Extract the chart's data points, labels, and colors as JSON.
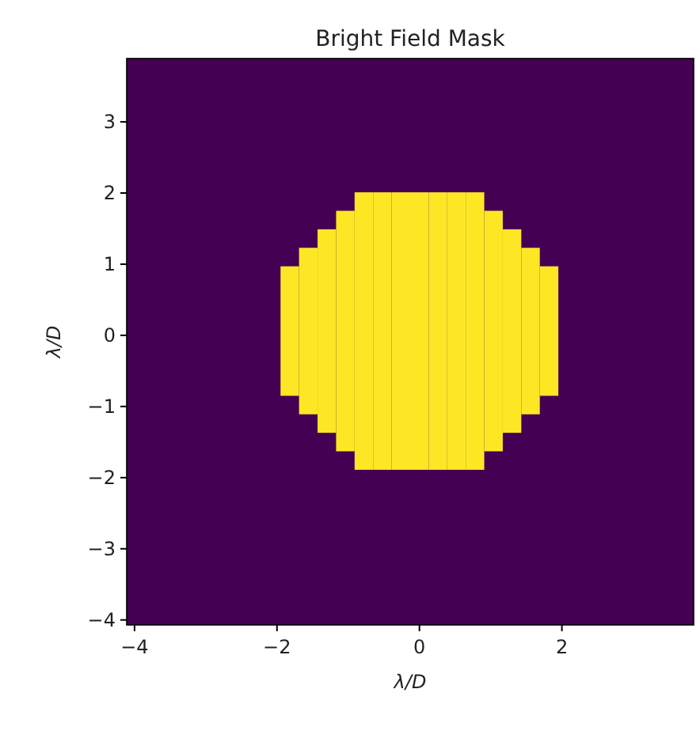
{
  "chart_data": {
    "type": "bar",
    "title": "Bright Field Mask",
    "xlabel": "λ/D",
    "ylabel": "λ/D",
    "xlim": [
      -4.11,
      3.85
    ],
    "ylim": [
      -4.07,
      3.89
    ],
    "xticks": [
      -4,
      -2,
      0,
      2
    ],
    "yticks": [
      -4,
      -3,
      -2,
      -1,
      0,
      1,
      2,
      3
    ],
    "x": [
      -1.82,
      -1.56,
      -1.3,
      -1.04,
      -0.78,
      -0.52,
      -0.26,
      0,
      0.26,
      0.52,
      0.78,
      1.04,
      1.3,
      1.56,
      1.82
    ],
    "base": [
      -0.85,
      -1.11,
      -1.37,
      -1.63,
      -1.89,
      -1.89,
      -1.89,
      -1.89,
      -1.89,
      -1.89,
      -1.89,
      -1.63,
      -1.37,
      -1.11,
      -0.85
    ],
    "values": [
      1.82,
      2.34,
      2.86,
      3.38,
      3.9,
      3.9,
      3.9,
      3.9,
      3.9,
      3.9,
      3.9,
      3.38,
      2.86,
      2.34,
      1.82
    ],
    "color": "#fde725"
  }
}
